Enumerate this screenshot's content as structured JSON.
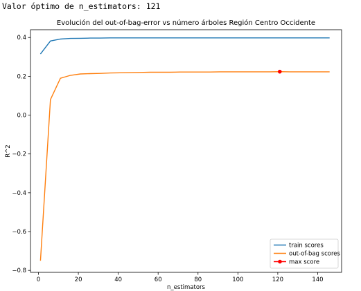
{
  "output_text": "Valor óptimo de n_estimators: 121",
  "chart_data": {
    "type": "line",
    "title": "Evolución del out-of-bag-error vs número árboles Región Centro Occidente",
    "xlabel": "n_estimators",
    "ylabel": "R^2",
    "xlim": [
      -4,
      152
    ],
    "ylim": [
      -0.81,
      0.44
    ],
    "xticks": [
      0,
      20,
      40,
      60,
      80,
      100,
      120,
      140
    ],
    "yticks": [
      -0.8,
      -0.6,
      -0.4,
      -0.2,
      0.0,
      0.2,
      0.4
    ],
    "ytick_labels": [
      "−0.8",
      "−0.6",
      "−0.4",
      "−0.2",
      "0.0",
      "0.2",
      "0.4"
    ],
    "grid": false,
    "legend_position": "lower right",
    "series": [
      {
        "name": "train scores",
        "color": "#1f77b4",
        "x": [
          1,
          6,
          11,
          16,
          21,
          26,
          31,
          36,
          41,
          46,
          51,
          56,
          61,
          66,
          71,
          76,
          81,
          86,
          91,
          96,
          101,
          106,
          111,
          116,
          121,
          126,
          131,
          136,
          141,
          146
        ],
        "y": [
          0.315,
          0.382,
          0.392,
          0.395,
          0.396,
          0.397,
          0.397,
          0.398,
          0.398,
          0.398,
          0.398,
          0.398,
          0.398,
          0.398,
          0.398,
          0.398,
          0.398,
          0.398,
          0.398,
          0.398,
          0.398,
          0.398,
          0.398,
          0.398,
          0.398,
          0.398,
          0.398,
          0.398,
          0.398,
          0.398
        ]
      },
      {
        "name": "out-of-bag scores",
        "color": "#ff7f0e",
        "x": [
          1,
          6,
          11,
          16,
          21,
          26,
          31,
          36,
          41,
          46,
          51,
          56,
          61,
          66,
          71,
          76,
          81,
          86,
          91,
          96,
          101,
          106,
          111,
          116,
          121,
          126,
          131,
          136,
          141,
          146
        ],
        "y": [
          -0.75,
          0.08,
          0.19,
          0.205,
          0.212,
          0.214,
          0.215,
          0.217,
          0.218,
          0.219,
          0.22,
          0.221,
          0.221,
          0.221,
          0.222,
          0.222,
          0.222,
          0.222,
          0.223,
          0.223,
          0.223,
          0.223,
          0.223,
          0.223,
          0.224,
          0.223,
          0.223,
          0.223,
          0.223,
          0.223
        ]
      }
    ],
    "max_point": {
      "name": "max score",
      "x": 121,
      "y": 0.224,
      "color": "#ff0000"
    }
  }
}
